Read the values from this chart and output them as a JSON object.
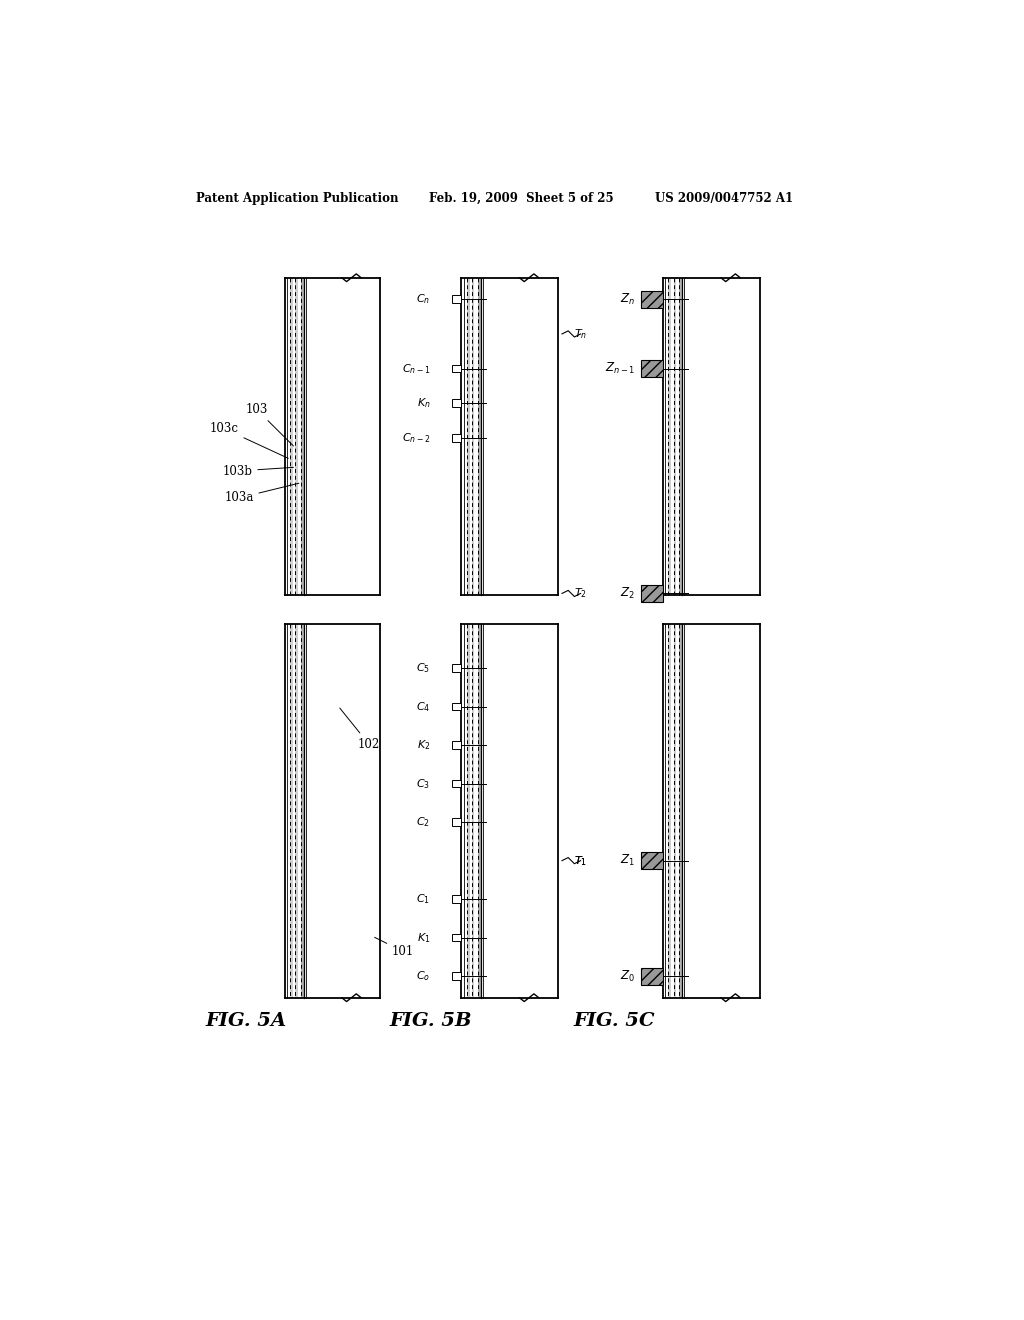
{
  "bg_color": "#ffffff",
  "header_left": "Patent Application Publication",
  "header_mid": "Feb. 19, 2009  Sheet 5 of 25",
  "header_right": "US 2009/0047752 A1",
  "fig5a_label": "FIG. 5A",
  "fig5b_label": "FIG. 5B",
  "fig5c_label": "FIG. 5C",
  "fig5a_labels": [
    "101",
    "102",
    "103",
    "103a",
    "103b",
    "103c"
  ],
  "fig5b_C_labels": [
    "C_o",
    "C_1",
    "K_1",
    "C_2",
    "C_3",
    "K_2",
    "C_4",
    "C_5",
    "C_{n-2}",
    "C_{n-1}",
    "K_n",
    "C_n"
  ],
  "fig5b_T_labels": [
    "T_1",
    "T_2",
    "T_n"
  ],
  "fig5c_Z_labels": [
    "Z_0",
    "Z_1",
    "Z_2",
    "Z_{n-1}",
    "Z_n"
  ]
}
